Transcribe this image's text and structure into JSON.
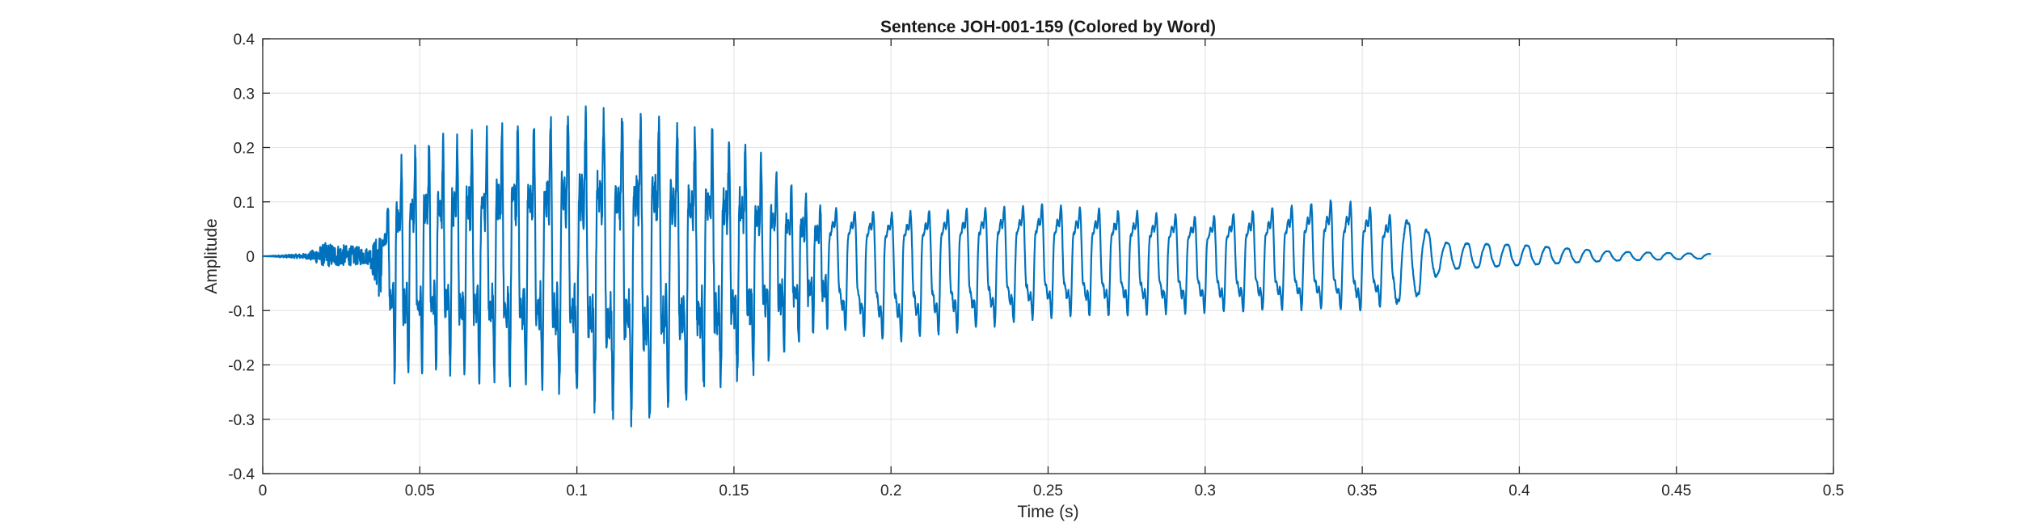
{
  "chart_data": {
    "type": "line",
    "title": "Sentence JOH-001-159 (Colored by Word)",
    "xlabel": "Time (s)",
    "ylabel": "Amplitude",
    "xlim": [
      0,
      0.5
    ],
    "ylim": [
      -0.4,
      0.4
    ],
    "x_ticks": [
      "0",
      "0.05",
      "0.1",
      "0.15",
      "0.2",
      "0.25",
      "0.3",
      "0.35",
      "0.4",
      "0.45",
      "0.5"
    ],
    "y_ticks": [
      "0.4",
      "0.3",
      "0.2",
      "0.1",
      "0",
      "-0.1",
      "-0.2",
      "-0.3",
      "-0.4"
    ],
    "grid": true,
    "line_color": "#0072BD",
    "series": [
      {
        "duration_s": 0.461,
        "envelope": {
          "t": [
            0.0,
            0.014,
            0.02,
            0.034,
            0.038,
            0.042,
            0.05,
            0.07,
            0.09,
            0.105,
            0.115,
            0.122,
            0.13,
            0.15,
            0.17,
            0.18,
            0.2,
            0.25,
            0.3,
            0.34,
            0.35,
            0.37,
            0.375,
            0.4,
            0.43,
            0.461
          ],
          "pos": [
            0.0,
            0.005,
            0.025,
            0.015,
            0.05,
            0.2,
            0.24,
            0.27,
            0.3,
            0.31,
            0.31,
            0.31,
            0.28,
            0.26,
            0.15,
            0.11,
            0.1,
            0.12,
            0.09,
            0.13,
            0.12,
            0.06,
            0.03,
            0.025,
            0.01,
            0.005
          ],
          "neg": [
            0.0,
            0.005,
            0.02,
            0.015,
            0.1,
            0.27,
            0.25,
            0.26,
            0.29,
            0.32,
            0.34,
            0.38,
            0.33,
            0.28,
            0.2,
            0.16,
            0.2,
            0.14,
            0.13,
            0.12,
            0.13,
            0.08,
            0.03,
            0.02,
            0.01,
            0.005
          ]
        }
      }
    ]
  }
}
